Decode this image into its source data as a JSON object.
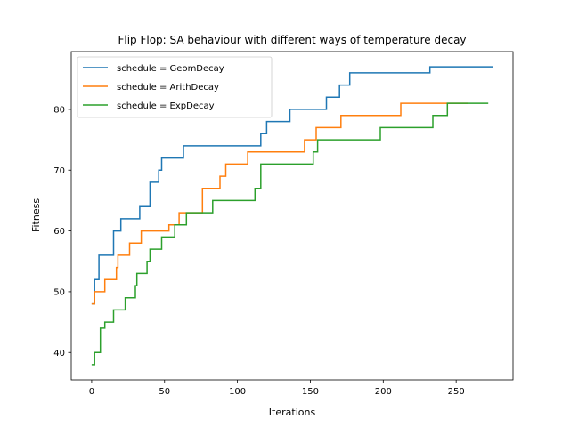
{
  "chart_data": {
    "type": "line",
    "title": "Flip Flop: SA behaviour with different ways of temperature decay",
    "xlabel": "Iterations",
    "ylabel": "Fitness",
    "xlim": [
      -14,
      289
    ],
    "ylim": [
      35.5,
      89.5
    ],
    "xticks": [
      0,
      50,
      100,
      150,
      200,
      250
    ],
    "yticks": [
      40,
      50,
      60,
      70,
      80
    ],
    "grid": false,
    "legend_position": "top-left",
    "series": [
      {
        "name": "schedule = GeomDecay",
        "color": "#1f77b4",
        "steps": [
          [
            0,
            48
          ],
          [
            2,
            52
          ],
          [
            5,
            56
          ],
          [
            15,
            60
          ],
          [
            20,
            62
          ],
          [
            33,
            64
          ],
          [
            40,
            68
          ],
          [
            46,
            70
          ],
          [
            48,
            72
          ],
          [
            63,
            74
          ],
          [
            116,
            76
          ],
          [
            120,
            78
          ],
          [
            136,
            80
          ],
          [
            161,
            82
          ],
          [
            170,
            84
          ],
          [
            177,
            86
          ],
          [
            232,
            87
          ],
          [
            275,
            87
          ]
        ]
      },
      {
        "name": "schedule = ArithDecay",
        "color": "#ff7f0e",
        "steps": [
          [
            0,
            48
          ],
          [
            2,
            50
          ],
          [
            9,
            52
          ],
          [
            17,
            54
          ],
          [
            18,
            56
          ],
          [
            26,
            58
          ],
          [
            34,
            60
          ],
          [
            53,
            61
          ],
          [
            60,
            63
          ],
          [
            76,
            67
          ],
          [
            88,
            69
          ],
          [
            92,
            71
          ],
          [
            107,
            73
          ],
          [
            146,
            75
          ],
          [
            154,
            77
          ],
          [
            171,
            79
          ],
          [
            212,
            81
          ],
          [
            258,
            81
          ]
        ]
      },
      {
        "name": "schedule = ExpDecay",
        "color": "#2ca02c",
        "steps": [
          [
            0,
            38
          ],
          [
            2,
            40
          ],
          [
            6,
            44
          ],
          [
            9,
            45
          ],
          [
            15,
            47
          ],
          [
            23,
            49
          ],
          [
            30,
            51
          ],
          [
            31,
            53
          ],
          [
            38,
            55
          ],
          [
            40,
            57
          ],
          [
            48,
            59
          ],
          [
            57,
            61
          ],
          [
            65,
            63
          ],
          [
            83,
            65
          ],
          [
            112,
            67
          ],
          [
            116,
            71
          ],
          [
            152,
            73
          ],
          [
            155,
            75
          ],
          [
            198,
            77
          ],
          [
            234,
            79
          ],
          [
            244,
            81
          ],
          [
            272,
            81
          ]
        ]
      }
    ]
  }
}
